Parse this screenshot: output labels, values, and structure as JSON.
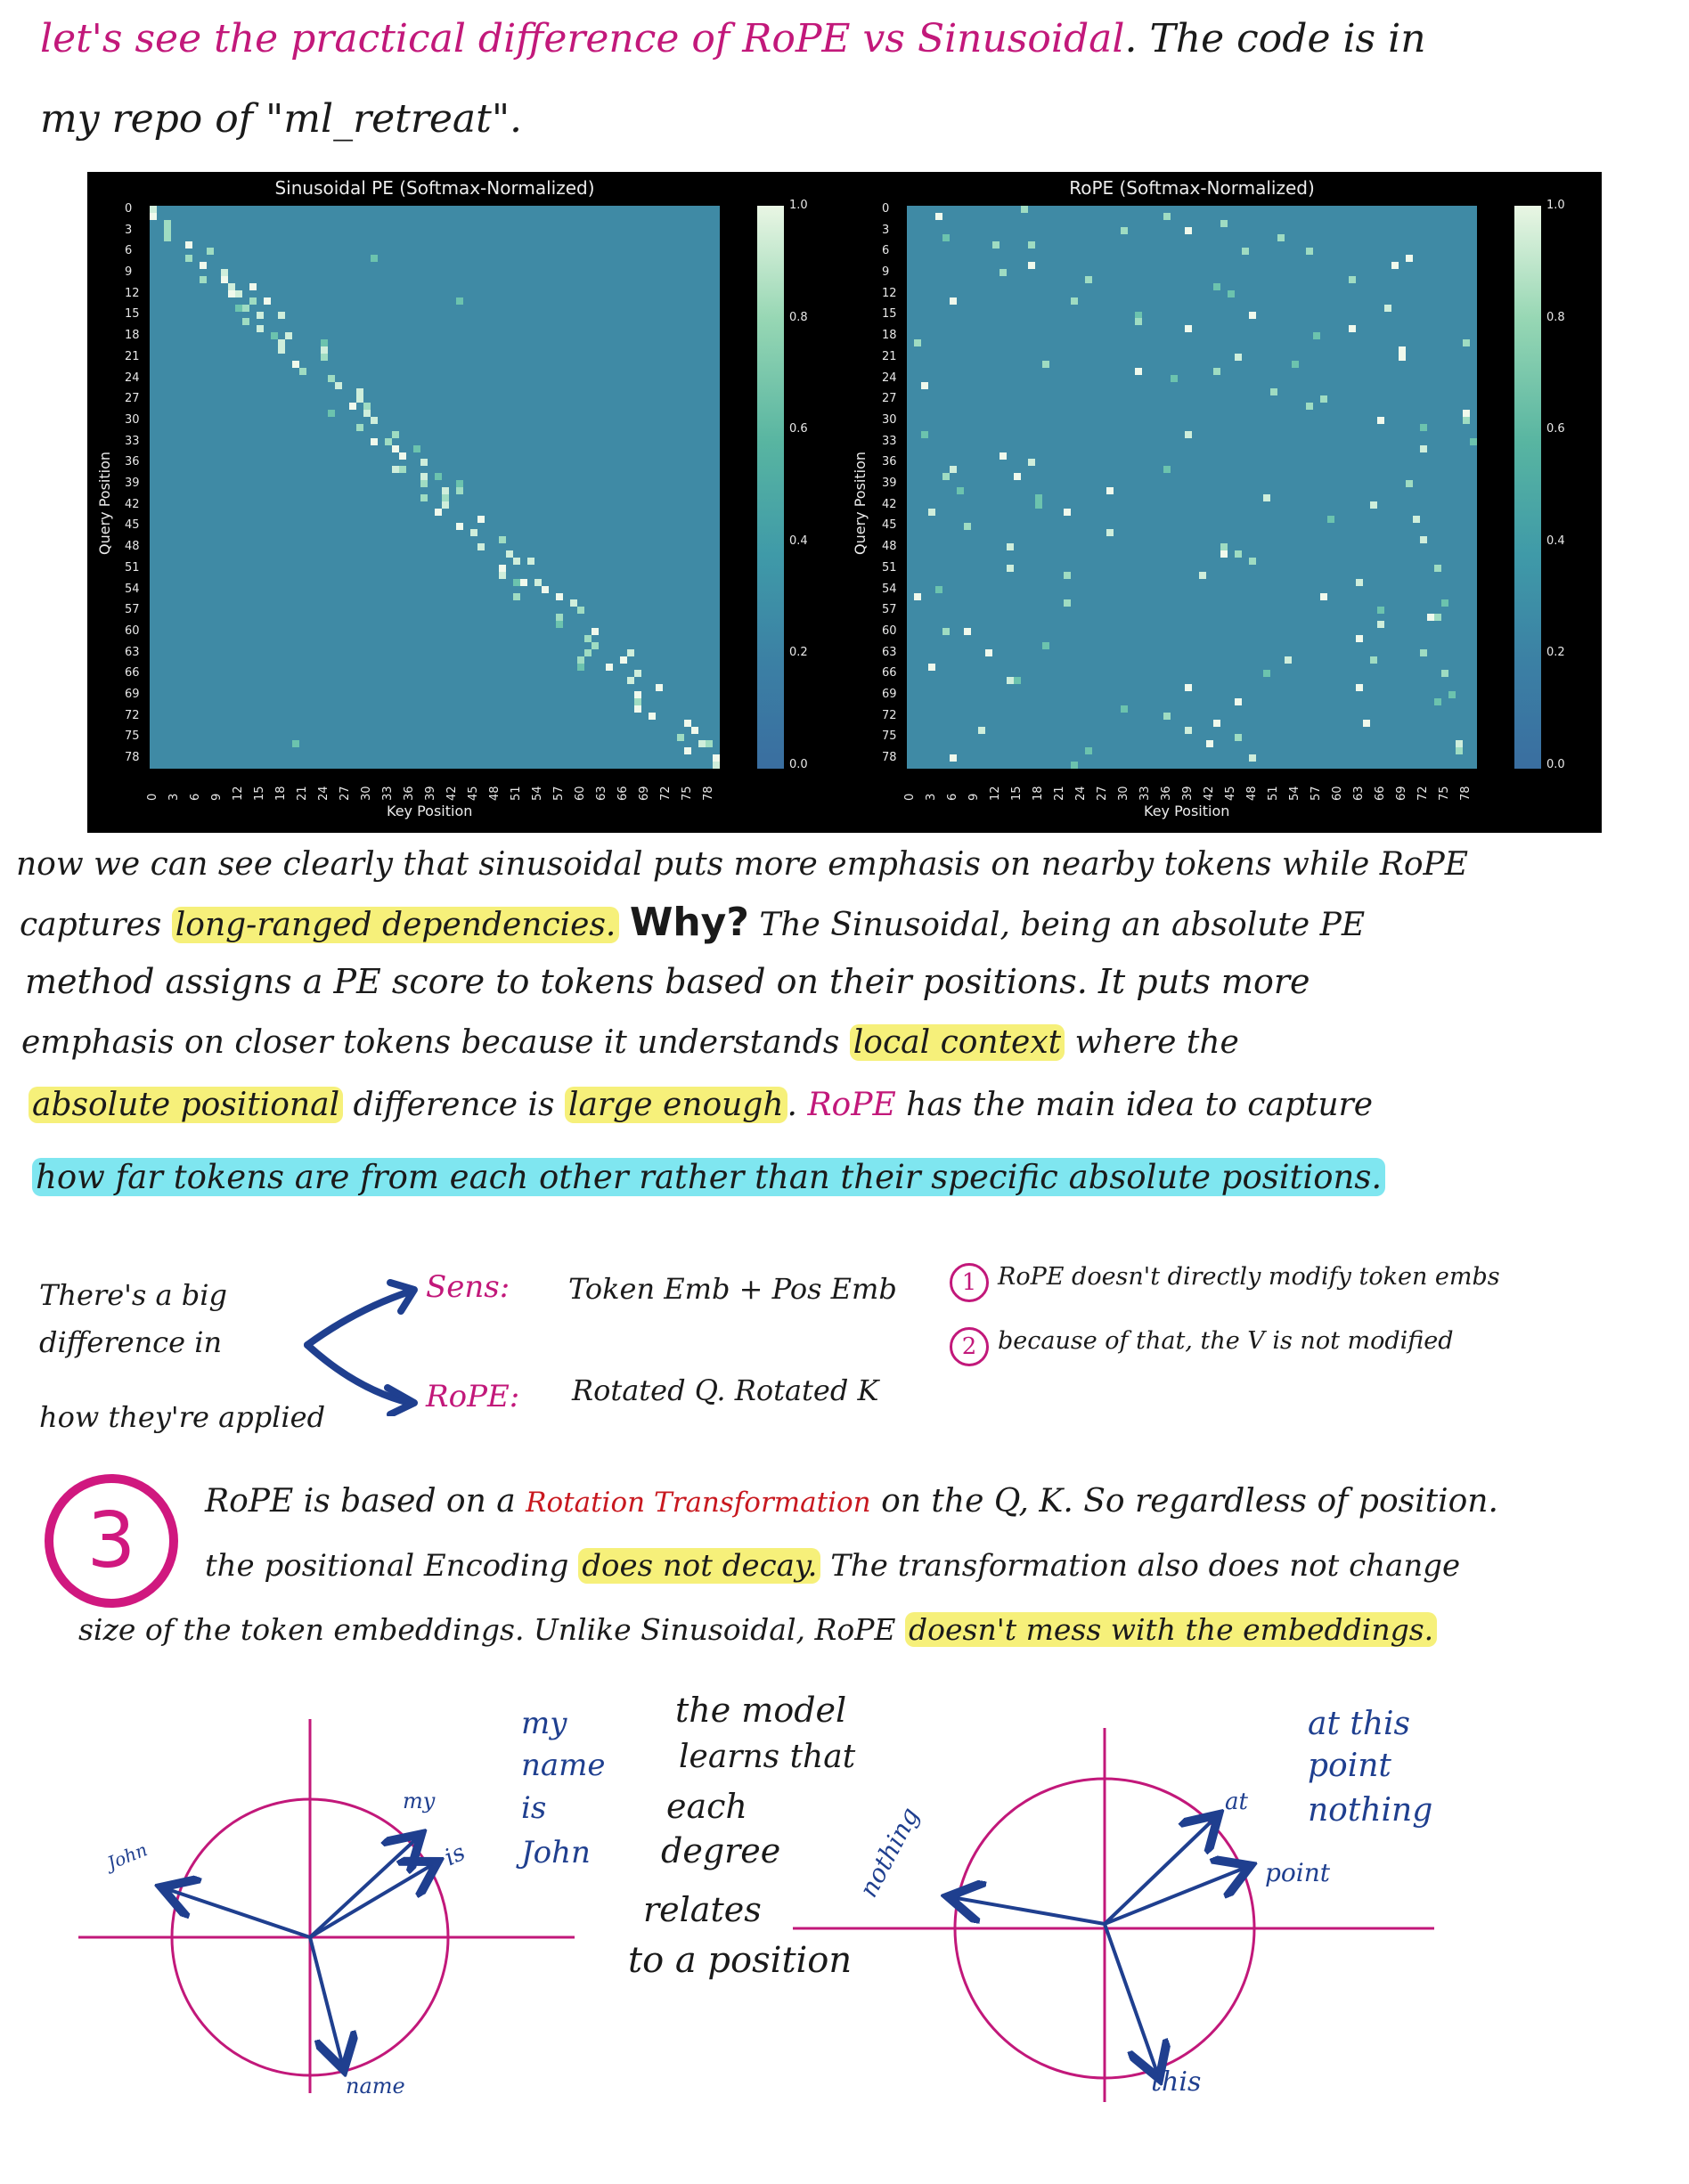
{
  "intro": {
    "line1_a": "let's see the practical difference of RoPE vs Sinusoidal",
    "line1_b": ". The code is in",
    "line2": "my repo of \"ml_retreat\"."
  },
  "chart_data": [
    {
      "type": "heatmap",
      "title": "Sinusoidal PE (Softmax-Normalized)",
      "xlabel": "Key Position",
      "ylabel": "Query Position",
      "ticks": [
        "0",
        "3",
        "6",
        "9",
        "12",
        "15",
        "18",
        "21",
        "24",
        "27",
        "30",
        "33",
        "36",
        "39",
        "42",
        "45",
        "48",
        "51",
        "54",
        "57",
        "60",
        "63",
        "66",
        "69",
        "72",
        "75",
        "78"
      ],
      "colorbar_ticks": [
        "1.0",
        "0.8",
        "0.6",
        "0.4",
        "0.2",
        "0.0"
      ],
      "size": 80,
      "pattern": "diagonal"
    },
    {
      "type": "heatmap",
      "title": "RoPE (Softmax-Normalized)",
      "xlabel": "Key Position",
      "ylabel": "Query Position",
      "ticks": [
        "0",
        "3",
        "6",
        "9",
        "12",
        "15",
        "18",
        "21",
        "24",
        "27",
        "30",
        "33",
        "36",
        "39",
        "42",
        "45",
        "48",
        "51",
        "54",
        "57",
        "60",
        "63",
        "66",
        "69",
        "72",
        "75",
        "78"
      ],
      "colorbar_ticks": [
        "1.0",
        "0.8",
        "0.6",
        "0.4",
        "0.2",
        "0.0"
      ],
      "size": 80,
      "pattern": "scattered"
    }
  ],
  "body": {
    "p1_l1": "now we can see clearly that sinusoidal puts more emphasis on nearby tokens while RoPE",
    "p1_l2_a": "captures",
    "p1_l2_hl": "long-ranged dependencies.",
    "p1_l2_why": "Why?",
    "p1_l2_b": "The Sinusoidal, being an absolute PE",
    "p1_l3": "method assigns a PE score to tokens based on their positions. It puts more",
    "p1_l4_a": "emphasis on closer tokens because it understands",
    "p1_l4_hl": "local context",
    "p1_l4_b": "where the",
    "p1_l5_hl1": "absolute positional",
    "p1_l5_a": "difference is",
    "p1_l5_hl2": "large enough",
    "p1_l5_b": ".",
    "p1_l5_rope": "RoPE",
    "p1_l5_c": "has the main idea to capture",
    "p1_l6_hl": "how far tokens are from each other rather than their specific absolute positions."
  },
  "compare": {
    "left_1": "There's a big",
    "left_2": "difference in",
    "left_3": "how they're applied",
    "sens_label": "Sens:",
    "sens_value": "Token Emb + Pos Emb",
    "rope_label": "RoPE:",
    "rope_value": "Rotated Q. Rotated K",
    "note1_num": "1",
    "note1": "RoPE doesn't directly modify token embs",
    "note2_num": "2",
    "note2": "because of that, the V is not modified"
  },
  "point3": {
    "num": "3",
    "l1_a": "RoPE is based on a",
    "l1_red": "Rotation Transformation",
    "l1_b": "on the Q, K. So regardless of position.",
    "l2_a": "the positional Encoding",
    "l2_hl": "does not decay.",
    "l2_b": "The transformation also does not change",
    "l3_a": "size of the token embeddings. Unlike Sinusoidal, RoPE",
    "l3_hl": "doesn't mess with the embeddings."
  },
  "diagrams": {
    "left_sentence": [
      "my",
      "name",
      "is",
      "John"
    ],
    "left_vectors": {
      "my": "my",
      "is": "is",
      "john": "John",
      "name": "name"
    },
    "middle": [
      "the model",
      "learns that",
      "each",
      "degree",
      "relates",
      "to a position"
    ],
    "right_sentence": [
      "at this",
      "point",
      "nothing"
    ],
    "right_vectors": {
      "at": "at",
      "point": "point",
      "nothing": "nothing",
      "this": "this"
    }
  },
  "colors": {
    "pink": "#c2187a",
    "blue": "#1f3f8f",
    "red": "#c8171e",
    "highlight_yellow": "#f6f07a",
    "highlight_cyan": "#7fe6f0",
    "heatmap_bg": "#3f8aa5"
  }
}
